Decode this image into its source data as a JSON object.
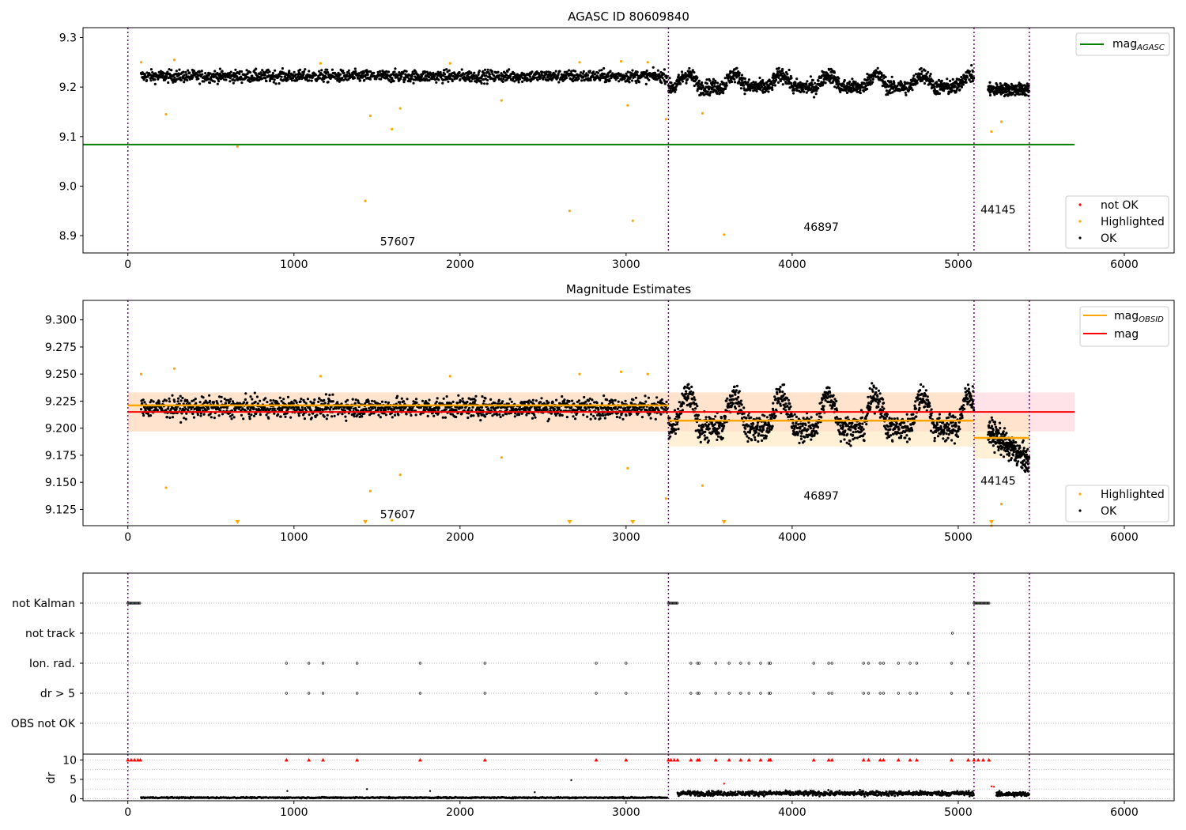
{
  "colors": {
    "ok": "#000000",
    "highlighted": "#ffa500",
    "not_ok": "#ff0000",
    "mag_agasc": "#008000",
    "mag_obsid": "#ffa500",
    "mag": "#ff0000",
    "obsid_boundary": "#800080",
    "mag_band": "#ffc0cb",
    "obsid_band": "#ffe4b5"
  },
  "chart_data": [
    {
      "type": "scatter",
      "title": "AGASC ID 80609840",
      "xlim": [
        -270,
        6300
      ],
      "ylim": [
        8.865,
        9.32
      ],
      "x_ticks": [
        "0",
        "1000",
        "2000",
        "3000",
        "4000",
        "5000",
        "6000"
      ],
      "y_ticks": [
        "8.9",
        "9.0",
        "9.1",
        "9.2",
        "9.3"
      ],
      "obsid_boundaries": [
        0,
        3255,
        5095,
        5428
      ],
      "obsid_labels": [
        {
          "text": "57607",
          "x": 1625,
          "y": 8.88
        },
        {
          "text": "46897",
          "x": 4175,
          "y": 8.91
        },
        {
          "text": "44145",
          "x": 5240,
          "y": 8.945
        }
      ],
      "mag_agasc_line": {
        "value": 9.084,
        "x": [
          -270,
          5700
        ]
      },
      "legend_lines": [
        {
          "main": "mag",
          "sub": "AGASC"
        }
      ],
      "legend_markers": [
        "not OK",
        "Highlighted",
        "OK"
      ],
      "highlighted_points": [
        [
          230,
          9.145
        ],
        [
          660,
          9.08
        ],
        [
          1430,
          8.97
        ],
        [
          1460,
          9.142
        ],
        [
          1590,
          9.115
        ],
        [
          1640,
          9.157
        ],
        [
          2250,
          9.173
        ],
        [
          2660,
          8.95
        ],
        [
          3010,
          9.163
        ],
        [
          3040,
          8.93
        ],
        [
          3240,
          9.135
        ],
        [
          3460,
          9.147
        ],
        [
          3590,
          8.902
        ],
        [
          5200,
          9.11
        ],
        [
          5260,
          9.13
        ],
        [
          80,
          9.25
        ],
        [
          280,
          9.255
        ],
        [
          1160,
          9.248
        ],
        [
          1940,
          9.248
        ],
        [
          2720,
          9.25
        ],
        [
          2970,
          9.252
        ],
        [
          3130,
          9.25
        ]
      ],
      "ok_segments": [
        {
          "x": [
            80,
            3250
          ],
          "base": 9.222,
          "spread": 0.012,
          "n": 1500
        },
        {
          "x": [
            3255,
            5095
          ],
          "base": 9.2,
          "spread": 0.015,
          "n": 1200
        },
        {
          "x": [
            5180,
            5428
          ],
          "base": 9.195,
          "spread": 0.012,
          "n": 250
        }
      ]
    },
    {
      "type": "scatter",
      "title": "Magnitude Estimates",
      "xlim": [
        -270,
        6300
      ],
      "ylim": [
        9.11,
        9.318
      ],
      "x_ticks": [
        "0",
        "1000",
        "2000",
        "3000",
        "4000",
        "5000",
        "6000"
      ],
      "y_ticks": [
        "9.125",
        "9.150",
        "9.175",
        "9.200",
        "9.225",
        "9.250",
        "9.275",
        "9.300"
      ],
      "obsid_boundaries": [
        0,
        3255,
        5095,
        5428
      ],
      "obsid_labels": [
        {
          "text": "57607",
          "x": 1625,
          "y": 9.117
        },
        {
          "text": "46897",
          "x": 4175,
          "y": 9.134
        },
        {
          "text": "44145",
          "x": 5240,
          "y": 9.148
        }
      ],
      "mag_line": {
        "value": 9.215,
        "band": [
          9.197,
          9.233
        ],
        "x": [
          0,
          5700
        ]
      },
      "mag_obsid_segments": [
        {
          "x": [
            0,
            3255
          ],
          "value": 9.221,
          "band": [
            9.197,
            9.233
          ]
        },
        {
          "x": [
            3255,
            5095
          ],
          "value": 9.207,
          "band": [
            9.183,
            9.233
          ]
        },
        {
          "x": [
            5095,
            5428
          ],
          "value": 9.191,
          "band": [
            9.172,
            9.213
          ]
        }
      ],
      "legend_lines": [
        {
          "main": "mag",
          "sub": "OBSID"
        },
        {
          "main": "mag",
          "sub": ""
        }
      ],
      "legend_markers": [
        "Highlighted",
        "OK"
      ],
      "clipped_markers_x": [
        660,
        1430,
        2660,
        3040,
        3590,
        5200
      ]
    },
    {
      "type": "scatter",
      "title": "",
      "xlim": [
        -270,
        6300
      ],
      "y_categories": [
        "not Kalman",
        "not track",
        "Ion. rad.",
        "dr > 5",
        "OBS not OK"
      ],
      "flags": {
        "not Kalman": [
          [
            0,
            75
          ],
          [
            3255,
            3310
          ],
          [
            5095,
            5185
          ]
        ],
        "not track": [
          4965
        ],
        "Ion. rad.": [
          955,
          1090,
          1175,
          1380,
          1760,
          2150,
          2820,
          3000,
          3390,
          3430,
          3440,
          3540,
          3620,
          3690,
          3740,
          3810,
          3860,
          3870,
          4130,
          4220,
          4240,
          4430,
          4460,
          4530,
          4550,
          4640,
          4710,
          4750,
          4960,
          5060
        ],
        "dr > 5": [
          955,
          1090,
          1175,
          1380,
          1760,
          2150,
          2820,
          3000,
          3390,
          3430,
          3440,
          3540,
          3620,
          3690,
          3740,
          3810,
          3860,
          3870,
          4130,
          4220,
          4240,
          4430,
          4460,
          4530,
          4550,
          4640,
          4710,
          4750,
          4960,
          5060
        ],
        "OBS not OK": []
      }
    },
    {
      "type": "scatter",
      "title": "",
      "ylabel": "dr",
      "xlim": [
        -270,
        6300
      ],
      "ylim": [
        -0.5,
        11.5
      ],
      "x_ticks": [
        "0",
        "1000",
        "2000",
        "3000",
        "4000",
        "5000",
        "6000"
      ],
      "y_ticks": [
        "0",
        "5",
        "10"
      ],
      "clip_value": 10,
      "clipped_red_x": [
        0,
        20,
        40,
        60,
        75,
        955,
        1090,
        1175,
        1380,
        1760,
        2150,
        2820,
        3000,
        3255,
        3270,
        3290,
        3310,
        3390,
        3430,
        3440,
        3540,
        3620,
        3690,
        3740,
        3810,
        3860,
        3870,
        4130,
        4220,
        4240,
        4430,
        4460,
        4530,
        4550,
        4640,
        4710,
        4750,
        4960,
        5060,
        5095,
        5120,
        5150,
        5185
      ],
      "ok_segments": [
        {
          "x": [
            80,
            3250
          ],
          "base": 0.3,
          "spread": 0.15,
          "n": 900
        },
        {
          "x": [
            3310,
            5095
          ],
          "base": 1.4,
          "spread": 0.6,
          "n": 800
        },
        {
          "x": [
            5230,
            5428
          ],
          "base": 1.2,
          "spread": 0.6,
          "n": 120
        }
      ],
      "outliers": [
        [
          960,
          2
        ],
        [
          1440,
          2.5
        ],
        [
          1820,
          2
        ],
        [
          2450,
          1.7
        ],
        [
          2670,
          4.8
        ],
        [
          3590,
          3.9
        ],
        [
          5200,
          3.2
        ],
        [
          5215,
          3.1
        ]
      ]
    }
  ]
}
